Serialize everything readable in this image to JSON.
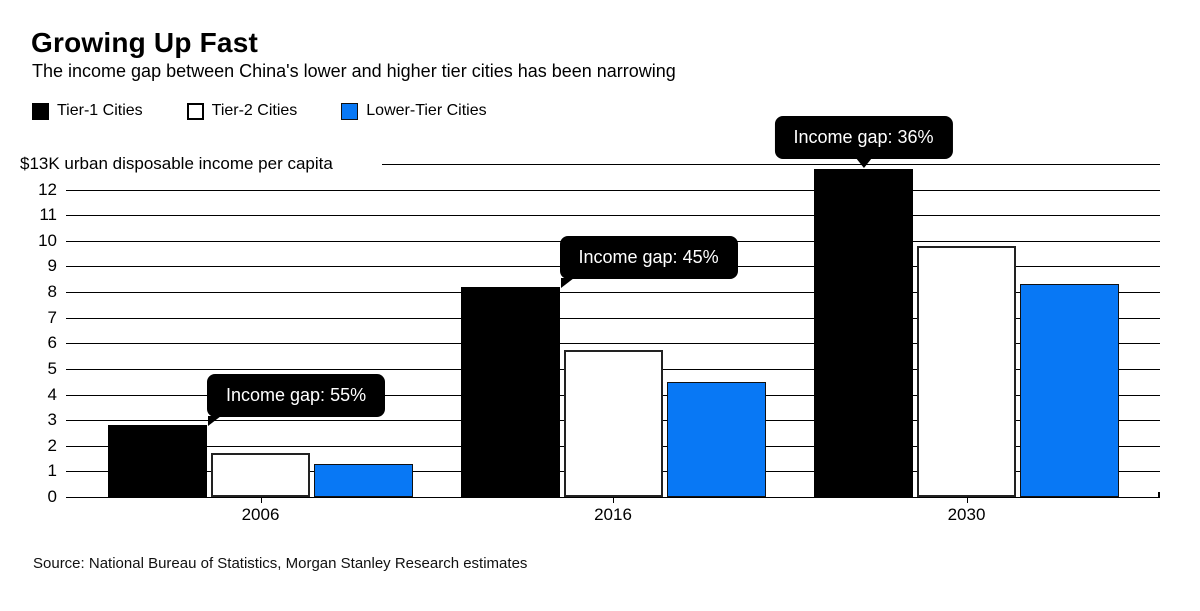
{
  "header": {
    "title": "Growing Up Fast",
    "subtitle": "The income gap between China's lower and higher tier cities has been narrowing"
  },
  "legend": [
    {
      "label": "Tier-1 Cities",
      "color": "#000000"
    },
    {
      "label": "Tier-2 Cities",
      "color": "#ffffff"
    },
    {
      "label": "Lower-Tier Cities",
      "color": "#0878f5"
    }
  ],
  "chart_data": {
    "type": "bar",
    "title": "Growing Up Fast",
    "subtitle": "The income gap between China's lower and higher tier cities has been narrowing",
    "categories": [
      "2006",
      "2016",
      "2030"
    ],
    "series": [
      {
        "name": "Tier-1 Cities",
        "color": "#000000",
        "values": [
          2.8,
          8.2,
          12.8
        ]
      },
      {
        "name": "Tier-2 Cities",
        "color": "#ffffff",
        "values": [
          1.7,
          5.75,
          9.8
        ]
      },
      {
        "name": "Lower-Tier Cities",
        "color": "#0878f5",
        "values": [
          1.3,
          4.5,
          8.3
        ]
      }
    ],
    "ylabel": "$13K urban disposable income per capita",
    "xlabel": "",
    "ylim": [
      0,
      13
    ],
    "ytick_step": 1,
    "grid": true,
    "legend_position": "top-left",
    "annotations": [
      {
        "text": "Income gap: 55%",
        "group": 0,
        "tail": "bottom-left"
      },
      {
        "text": "Income gap: 45%",
        "group": 1,
        "tail": "bottom-left"
      },
      {
        "text": "Income gap: 36%",
        "group": 2,
        "tail": "bottom-center"
      }
    ]
  },
  "source": "Source: National Bureau of Statistics, Morgan Stanley Research estimates"
}
